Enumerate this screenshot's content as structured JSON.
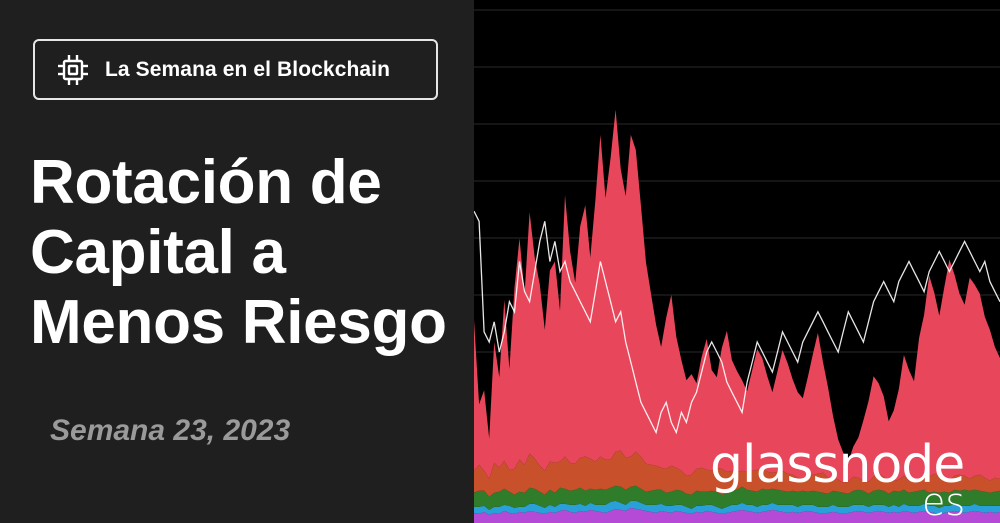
{
  "badge": {
    "label": "La Semana en el Blockchain",
    "icon": "chip-icon"
  },
  "title": {
    "lines": [
      "Rotación de",
      "Capital a",
      "Menos Riesgo"
    ]
  },
  "week_label": "Semana 23, 2023",
  "brand": {
    "main": "glassnode",
    "sub": "es"
  },
  "colors": {
    "background": "#1f1f1f",
    "chart_background": "#000000",
    "red": "#e8465a",
    "orange": "#c8502a",
    "green": "#2f7d2b",
    "blue": "#2aa0d8",
    "purple": "#b54ad6",
    "line": "#ffffff"
  },
  "chart_data": {
    "type": "area",
    "stacked": true,
    "grid": true,
    "x": [
      0,
      1,
      2,
      3,
      4,
      5,
      6,
      7,
      8,
      9,
      10,
      11,
      12,
      13,
      14,
      15,
      16,
      17,
      18,
      19,
      20,
      21,
      22,
      23,
      24,
      25,
      26,
      27,
      28,
      29,
      30,
      31,
      32,
      33,
      34,
      35,
      36,
      37,
      38,
      39,
      40,
      41,
      42,
      43,
      44,
      45,
      46,
      47,
      48,
      49,
      50,
      51,
      52,
      53,
      54,
      55,
      56,
      57,
      58,
      59,
      60,
      61,
      62,
      63,
      64,
      65,
      66,
      67,
      68,
      69,
      70,
      71,
      72,
      73,
      74,
      75,
      76,
      77,
      78,
      79,
      80,
      81,
      82,
      83,
      84,
      85,
      86,
      87,
      88,
      89,
      90,
      91,
      92,
      93,
      94,
      95,
      96,
      97,
      98,
      99,
      100,
      101,
      102,
      103,
      104
    ],
    "series": [
      {
        "values": [
          10,
          9,
          11,
          8,
          10,
          9,
          12,
          10,
          9,
          11,
          10,
          12,
          11,
          10,
          9,
          11,
          10,
          12,
          13,
          11,
          10,
          12,
          11,
          13,
          12,
          11,
          10,
          12,
          14,
          13,
          12,
          15,
          14,
          13,
          12,
          11,
          10,
          12,
          11,
          10,
          12,
          11,
          10,
          9,
          11,
          10,
          12,
          11,
          10,
          9,
          10,
          11,
          12,
          13,
          12,
          11,
          10,
          11,
          12,
          13,
          12,
          11,
          10,
          11,
          10,
          11,
          12,
          11,
          10,
          9,
          10,
          11,
          10,
          9,
          10,
          11,
          12,
          11,
          10,
          11,
          12,
          11,
          10,
          11,
          10,
          12,
          11,
          10,
          11,
          12,
          11,
          10,
          9,
          10,
          11,
          12,
          11,
          10,
          11,
          12,
          11,
          10,
          11,
          10,
          11
        ]
      },
      {
        "values": [
          6,
          7,
          6,
          5,
          6,
          7,
          6,
          7,
          6,
          5,
          6,
          7,
          8,
          7,
          6,
          7,
          6,
          7,
          6,
          7,
          8,
          7,
          6,
          7,
          6,
          7,
          8,
          9,
          8,
          7,
          6,
          7,
          8,
          7,
          6,
          7,
          8,
          7,
          6,
          7,
          6,
          7,
          6,
          5,
          6,
          7,
          6,
          7,
          6,
          5,
          6,
          7,
          6,
          7,
          6,
          7,
          6,
          7,
          6,
          7,
          6,
          7,
          8,
          7,
          6,
          7,
          6,
          7,
          6,
          7,
          6,
          7,
          6,
          7,
          6,
          7,
          6,
          7,
          6,
          7,
          6,
          7,
          6,
          7,
          6,
          7,
          6,
          7,
          6,
          7,
          6,
          7,
          6,
          7,
          6,
          7,
          6,
          7,
          6,
          7,
          6,
          7,
          6,
          7,
          6
        ]
      },
      {
        "values": [
          14,
          16,
          15,
          13,
          14,
          15,
          16,
          14,
          13,
          15,
          14,
          16,
          15,
          14,
          13,
          15,
          14,
          16,
          15,
          14,
          15,
          16,
          15,
          14,
          15,
          16,
          15,
          14,
          15,
          16,
          15,
          14,
          15,
          14,
          13,
          14,
          15,
          14,
          13,
          14,
          15,
          14,
          13,
          14,
          15,
          14,
          13,
          14,
          15,
          14,
          13,
          14,
          15,
          16,
          15,
          14,
          15,
          16,
          15,
          14,
          15,
          14,
          13,
          14,
          15,
          14,
          13,
          14,
          15,
          14,
          13,
          14,
          15,
          14,
          13,
          14,
          15,
          14,
          13,
          14,
          15,
          14,
          13,
          14,
          15,
          14,
          13,
          14,
          15,
          14,
          13,
          14,
          15,
          14,
          13,
          14,
          15,
          16,
          15,
          14,
          15,
          14,
          13,
          14,
          15
        ]
      },
      {
        "values": [
          22,
          26,
          20,
          18,
          30,
          24,
          28,
          22,
          26,
          32,
          28,
          34,
          30,
          26,
          24,
          28,
          30,
          26,
          32,
          28,
          26,
          30,
          34,
          30,
          28,
          32,
          30,
          28,
          34,
          36,
          32,
          30,
          34,
          32,
          28,
          26,
          24,
          22,
          24,
          26,
          22,
          20,
          18,
          20,
          22,
          24,
          22,
          20,
          24,
          26,
          22,
          20,
          18,
          16,
          18,
          20,
          22,
          20,
          18,
          16,
          18,
          20,
          18,
          16,
          14,
          12,
          14,
          16,
          18,
          20,
          16,
          14,
          12,
          10,
          12,
          14,
          12,
          10,
          12,
          14,
          16,
          14,
          12,
          10,
          12,
          14,
          12,
          10,
          12,
          14,
          16,
          18,
          16,
          14,
          12,
          14,
          16,
          14,
          12,
          14,
          16,
          14,
          12,
          14,
          12
        ]
      },
      {
        "values": [
          150,
          60,
          80,
          40,
          120,
          90,
          160,
          100,
          180,
          220,
          170,
          240,
          200,
          180,
          140,
          190,
          200,
          150,
          260,
          210,
          180,
          230,
          250,
          200,
          260,
          320,
          260,
          300,
          340,
          280,
          260,
          320,
          300,
          250,
          200,
          170,
          140,
          120,
          150,
          170,
          130,
          110,
          95,
          100,
          85,
          110,
          130,
          100,
          90,
          120,
          140,
          110,
          100,
          90,
          80,
          100,
          120,
          110,
          95,
          80,
          100,
          120,
          110,
          95,
          85,
          80,
          100,
          120,
          140,
          110,
          90,
          60,
          40,
          30,
          20,
          30,
          40,
          60,
          80,
          100,
          90,
          80,
          60,
          70,
          90,
          120,
          110,
          100,
          140,
          160,
          200,
          180,
          160,
          190,
          220,
          200,
          180,
          170,
          200,
          190,
          180,
          160,
          150,
          130,
          120
        ]
      }
    ],
    "line": {
      "values": [
        310,
        300,
        190,
        180,
        200,
        170,
        190,
        220,
        210,
        260,
        230,
        220,
        250,
        280,
        300,
        260,
        280,
        250,
        260,
        240,
        230,
        220,
        210,
        200,
        230,
        260,
        240,
        220,
        200,
        210,
        180,
        160,
        140,
        120,
        110,
        100,
        90,
        110,
        120,
        100,
        90,
        110,
        100,
        120,
        130,
        150,
        170,
        180,
        170,
        160,
        140,
        130,
        120,
        110,
        140,
        160,
        180,
        170,
        160,
        150,
        170,
        190,
        180,
        170,
        160,
        180,
        190,
        200,
        210,
        200,
        190,
        180,
        170,
        190,
        210,
        200,
        190,
        180,
        200,
        220,
        230,
        240,
        230,
        220,
        240,
        250,
        260,
        250,
        240,
        230,
        250,
        260,
        270,
        260,
        250,
        260,
        270,
        280,
        270,
        260,
        250,
        260,
        240,
        230,
        220
      ]
    },
    "ylim": [
      0,
      520
    ]
  }
}
